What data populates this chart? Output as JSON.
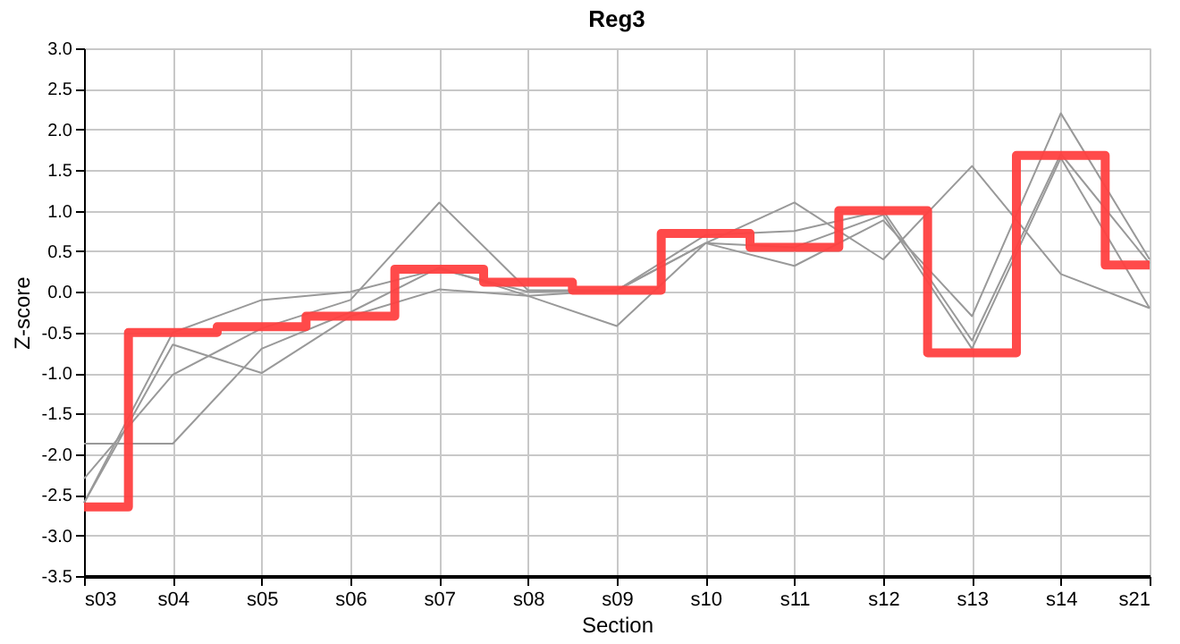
{
  "chart_data": {
    "type": "line",
    "title": "Reg3",
    "xlabel": "Section",
    "ylabel": "Z-score",
    "categories": [
      "s03",
      "s04",
      "s05",
      "s06",
      "s07",
      "s08",
      "s09",
      "s10",
      "s11",
      "s12",
      "s13",
      "s14",
      "s21"
    ],
    "series": [
      {
        "color": "#999999",
        "values": [
          -2.3,
          -1.02,
          -0.45,
          -0.1,
          1.1,
          0.02,
          0.02,
          0.6,
          1.1,
          0.4,
          1.55,
          0.22,
          -0.2
        ]
      },
      {
        "color": "#999999",
        "values": [
          -1.87,
          -1.87,
          -0.7,
          -0.25,
          0.3,
          -0.05,
          -0.42,
          0.6,
          0.32,
          0.88,
          -0.3,
          2.2,
          0.4
        ]
      },
      {
        "color": "#999999",
        "values": [
          -2.6,
          -0.65,
          -1.0,
          -0.3,
          0.03,
          -0.05,
          0.02,
          0.7,
          0.75,
          1.0,
          -0.6,
          1.7,
          0.35
        ]
      },
      {
        "color": "#999999",
        "values": [
          -2.6,
          -0.5,
          -0.1,
          0.0,
          0.28,
          0.0,
          0.02,
          0.6,
          0.55,
          0.95,
          -0.7,
          1.65,
          -0.2
        ]
      },
      {
        "type": "step",
        "color": "#ff4040",
        "values": [
          -2.65,
          -0.5,
          -0.43,
          -0.3,
          0.28,
          0.12,
          0.02,
          0.72,
          0.55,
          1.0,
          -0.75,
          1.68,
          0.33
        ]
      }
    ],
    "ylim": [
      -3.5,
      3.0
    ],
    "yticks": [
      {
        "value": -3.5,
        "label": "-3.5"
      },
      {
        "value": -3,
        "label": "-3.0"
      },
      {
        "value": -2.5,
        "label": "-2.5"
      },
      {
        "value": -2,
        "label": "-2.0"
      },
      {
        "value": -1.5,
        "label": "-1.5"
      },
      {
        "value": -1,
        "label": "-1.0"
      },
      {
        "value": -0.5,
        "label": "-0.5"
      },
      {
        "value": 0,
        "label": "0.0"
      },
      {
        "value": 0.5,
        "label": "0.5"
      },
      {
        "value": 1,
        "label": "1.0"
      },
      {
        "value": 1.5,
        "label": "1.5"
      },
      {
        "value": 2,
        "label": "2.0"
      },
      {
        "value": 2.5,
        "label": "2.5"
      },
      {
        "value": 3,
        "label": "3.0"
      }
    ],
    "grid": true,
    "legend": false
  }
}
